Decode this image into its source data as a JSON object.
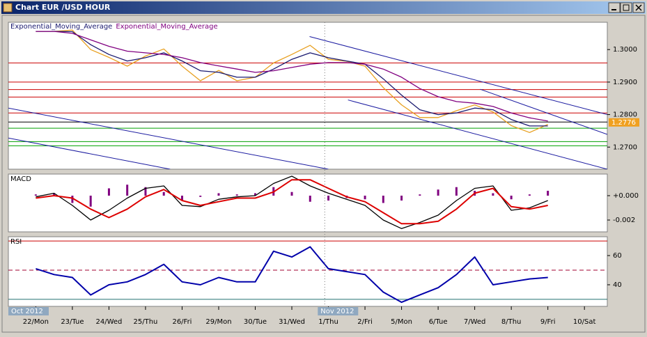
{
  "window_title": "Chart EUR /USD  HOUR",
  "chart_data": [
    {
      "type": "line",
      "xlim": [
        -1.5,
        31.25
      ],
      "ylim": [
        1.2632,
        1.3084
      ],
      "yticks": [
        {
          "value": 1.27,
          "label": "1.2700"
        },
        {
          "value": 1.28,
          "label": "1.2800"
        },
        {
          "value": 1.29,
          "label": "1.2900"
        },
        {
          "value": 1.3,
          "label": "1.3000"
        }
      ],
      "series": [
        {
          "color": "#e8a020",
          "values": [
            1.3056,
            1.3056,
            1.306,
            1.3,
            1.2976,
            1.2949,
            1.298,
            1.3002,
            1.2949,
            1.2904,
            1.2936,
            1.2904,
            1.2915,
            1.2959,
            1.2985,
            1.3013,
            1.297,
            1.2964,
            1.2949,
            1.2883,
            1.283,
            1.2791,
            1.2791,
            1.2812,
            1.283,
            1.2808,
            1.2766,
            1.2745,
            1.277
          ]
        },
        {
          "name": "Exponential_Moving_Average",
          "color": "#1a1a70",
          "values": [
            1.3056,
            1.3056,
            1.3055,
            1.3015,
            1.2985,
            1.2965,
            1.2975,
            1.299,
            1.2965,
            1.2935,
            1.293,
            1.2915,
            1.2915,
            1.294,
            1.297,
            1.299,
            1.2975,
            1.2965,
            1.2955,
            1.291,
            1.286,
            1.2815,
            1.28,
            1.2805,
            1.282,
            1.2815,
            1.2785,
            1.2765,
            1.2765
          ]
        },
        {
          "name": "Exponential_Moving_Average",
          "color": "#800080",
          "values": [
            1.3056,
            1.3056,
            1.305,
            1.303,
            1.301,
            1.2995,
            1.299,
            1.2985,
            1.2975,
            1.296,
            1.295,
            1.294,
            1.293,
            1.2935,
            1.2945,
            1.2955,
            1.296,
            1.296,
            1.2955,
            1.294,
            1.2915,
            1.288,
            1.2855,
            1.284,
            1.2835,
            1.2825,
            1.2805,
            1.279,
            1.278
          ]
        }
      ],
      "levels": [
        {
          "value": 1.2959,
          "color": "#cc0000"
        },
        {
          "value": 1.29,
          "color": "#cc0000"
        },
        {
          "value": 1.2877,
          "color": "#cc0000"
        },
        {
          "value": 1.2854,
          "color": "#cc0000"
        },
        {
          "value": 1.2805,
          "color": "#cc0000"
        },
        {
          "value": 1.2777,
          "color": "#000000"
        },
        {
          "value": 1.2758,
          "color": "#00a000"
        },
        {
          "value": 1.2717,
          "color": "#00a000"
        },
        {
          "value": 1.2704,
          "color": "#00a000"
        }
      ],
      "trend_lines": [
        {
          "color": "#1a1aa0",
          "x": [
            14.97,
            31.25
          ],
          "values": [
            1.304,
            1.28
          ]
        },
        {
          "color": "#1a1aa0",
          "x": [
            17.07,
            31.25
          ],
          "values": [
            1.2845,
            1.2632
          ]
        },
        {
          "color": "#1a1aa0",
          "x": [
            24.3,
            31.25
          ],
          "values": [
            1.2878,
            1.2739
          ]
        },
        {
          "color": "#1a1aa0",
          "x": [
            -1.5,
            16
          ],
          "values": [
            1.282,
            1.2632
          ]
        },
        {
          "color": "#1a1aa0",
          "x": [
            -1.5,
            7.35
          ],
          "values": [
            1.2728,
            1.2632
          ]
        }
      ],
      "last_value": {
        "value": 1.2776,
        "color": "#f0a020"
      }
    },
    {
      "type": "line",
      "title": "MACD",
      "xlim": [
        -1.5,
        31.25
      ],
      "ylim": [
        -0.00297,
        0.00177
      ],
      "yticks": [
        {
          "value": 0,
          "label": "+0.000"
        },
        -0.002
      ],
      "series": [
        {
          "color": "#800080",
          "style": "histogram",
          "values": [
            0.0001,
            0.0002,
            -0.0006,
            -0.0009,
            0.0006,
            0.0009,
            0.0007,
            0.0003,
            -0.0004,
            -0.0001,
            0.0002,
            0.0001,
            0.0002,
            0.0007,
            0.0003,
            -0.0005,
            -0.0004,
            -0.0002,
            -0.0003,
            -0.0006,
            -0.0004,
            0.0001,
            0.0005,
            0.0007,
            0.0004,
            0.0002,
            -0.0003,
            0.0001,
            0.0004
          ]
        },
        {
          "color": "#000000",
          "values": [
            -0.0001,
            0.0002,
            -0.0008,
            -0.002,
            -0.0012,
            -0.0002,
            0.0006,
            0.0008,
            -0.0008,
            -0.0009,
            -0.0003,
            -0.0001,
            0.0,
            0.001,
            0.0016,
            0.0008,
            0.0002,
            -0.0003,
            -0.0008,
            -0.002,
            -0.0027,
            -0.0022,
            -0.0016,
            -0.0004,
            0.0006,
            0.0008,
            -0.0012,
            -0.001,
            -0.0004
          ]
        },
        {
          "color": "#dd0000",
          "width": 2,
          "values": [
            -0.0002,
            0,
            -0.0002,
            -0.0011,
            -0.0018,
            -0.0011,
            -0.0001,
            0.0005,
            -0.0004,
            -0.0008,
            -0.0005,
            -0.0002,
            -0.0002,
            0.0003,
            0.0013,
            0.0013,
            0.0006,
            -0.0001,
            -0.0005,
            -0.0014,
            -0.0023,
            -0.0023,
            -0.0021,
            -0.0011,
            0.0002,
            0.0006,
            -0.0009,
            -0.0011,
            -0.0008
          ]
        }
      ]
    },
    {
      "type": "line",
      "title": "RSI",
      "xlim": [
        -1.5,
        31.25
      ],
      "ylim": [
        25.2,
        72.9
      ],
      "yticks": [
        40,
        60
      ],
      "levels": [
        {
          "value": 70,
          "color": "#cc0000"
        },
        {
          "value": 50,
          "color": "#a00030",
          "dash": true
        },
        {
          "value": 30,
          "color": "#207070"
        }
      ],
      "series": [
        {
          "color": "#0000aa",
          "width": 2,
          "values": [
            51,
            47,
            45,
            33,
            40,
            42,
            47,
            54,
            42,
            40,
            45,
            42,
            42,
            63,
            59,
            66,
            51,
            49,
            47,
            35,
            28,
            33,
            38,
            47,
            59,
            40,
            42,
            44,
            45
          ]
        }
      ],
      "xticks": [
        {
          "value": 0,
          "label": "22/Mon"
        },
        {
          "value": 2,
          "label": "23/Tue"
        },
        {
          "value": 4,
          "label": "24/Wed"
        },
        {
          "value": 6,
          "label": "25/Thu"
        },
        {
          "value": 8,
          "label": "26/Fri"
        },
        {
          "value": 10,
          "label": "29/Mon"
        },
        {
          "value": 12,
          "label": "30/Tue"
        },
        {
          "value": 14,
          "label": "31/Wed"
        },
        {
          "value": 16,
          "label": "1/Thu"
        },
        {
          "value": 18,
          "label": "2/Fri"
        },
        {
          "value": 20,
          "label": "5/Mon"
        },
        {
          "value": 22,
          "label": "6/Tue"
        },
        {
          "value": 24,
          "label": "7/Wed"
        },
        {
          "value": 26,
          "label": "8/Thu"
        },
        {
          "value": 28,
          "label": "9/Fri"
        },
        {
          "value": 30,
          "label": "10/Sat"
        }
      ],
      "periods": [
        {
          "label": "Oct 2012",
          "x": -1.5
        },
        {
          "label": "Nov 2012",
          "x": 15.8
        }
      ]
    }
  ]
}
